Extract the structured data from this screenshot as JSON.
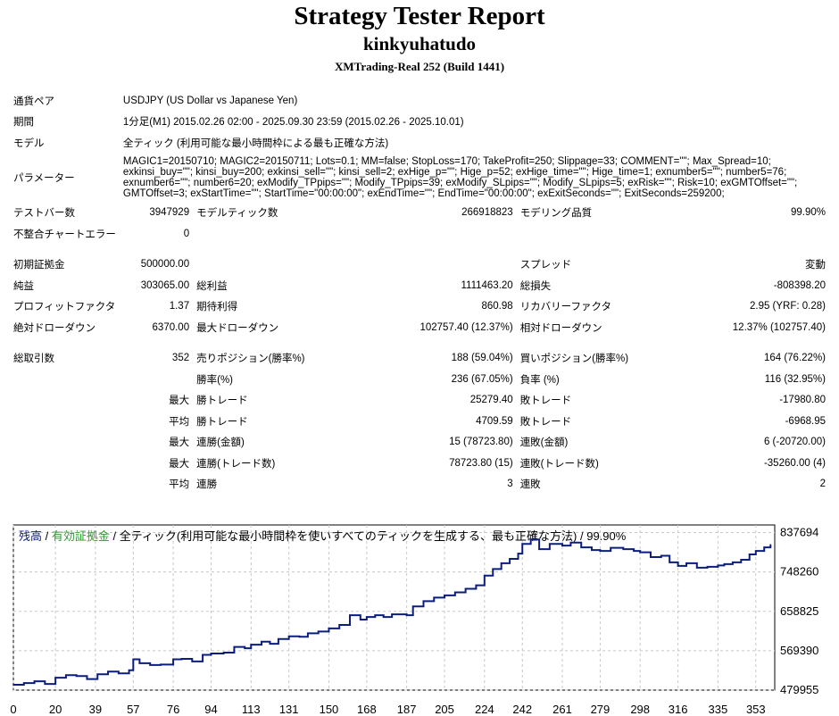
{
  "header": {
    "title": "Strategy Tester Report",
    "subtitle": "kinkyuhatudo",
    "server": "XMTrading-Real 252 (Build 1441)"
  },
  "info": {
    "pair_label": "通貨ペア",
    "pair_value": "USDJPY (US Dollar vs Japanese Yen)",
    "period_label": "期間",
    "period_value": "1分足(M1) 2015.02.26 02:00 - 2025.09.30 23:59 (2015.02.26 - 2025.10.01)",
    "model_label": "モデル",
    "model_value": "全ティック (利用可能な最小時間枠による最も正確な方法)",
    "params_label": "パラメーター",
    "params_value": "MAGIC1=20150710; MAGIC2=20150711; Lots=0.1; MM=false; StopLoss=170; TakeProfit=250; Slippage=33; COMMENT=\"\"; Max_Spread=10; exkinsi_buy=\"\"; kinsi_buy=200; exkinsi_sell=\"\"; kinsi_sell=2; exHige_p=\"\"; Hige_p=52; exHige_time=\"\"; Hige_time=1; exnumber5=\"\"; number5=76; exnumber6=\"\"; number6=20; exModify_TPpips=\"\"; Modify_TPpips=39; exModify_SLpips=\"\"; Modify_SLpips=5; exRisk=\"\"; Risk=10; exGMTOffset=\"\"; GMTOffset=3; exStartTime=\"\"; StartTime=\"00:00:00\"; exEndTime=\"\"; EndTime=\"00:00:00\"; exExitSeconds=\"\"; ExitSeconds=259200;"
  },
  "stats": {
    "bars_label": "テストバー数",
    "bars_value": "3947929",
    "ticks_label": "モデルティック数",
    "ticks_value": "266918823",
    "quality_label": "モデリング品質",
    "quality_value": "99.90%",
    "mismatch_label": "不整合チャートエラー",
    "mismatch_value": "0",
    "deposit_label": "初期証拠金",
    "deposit_value": "500000.00",
    "spread_label": "スプレッド",
    "spread_value": "変動",
    "net_label": "純益",
    "net_value": "303065.00",
    "gross_profit_label": "総利益",
    "gross_profit_value": "1111463.20",
    "gross_loss_label": "総損失",
    "gross_loss_value": "-808398.20",
    "pf_label": "プロフィットファクタ",
    "pf_value": "1.37",
    "expected_label": "期待利得",
    "expected_value": "860.98",
    "recovery_label": "リカバリーファクタ",
    "recovery_value": "2.95 (YRF: 0.28)",
    "abs_dd_label": "絶対ドローダウン",
    "abs_dd_value": "6370.00",
    "max_dd_label": "最大ドローダウン",
    "max_dd_value": "102757.40 (12.37%)",
    "rel_dd_label": "相対ドローダウン",
    "rel_dd_value": "12.37% (102757.40)",
    "trades_label": "総取引数",
    "trades_value": "352",
    "short_label": "売りポジション(勝率%)",
    "short_value": "188 (59.04%)",
    "long_label": "買いポジション(勝率%)",
    "long_value": "164 (76.22%)",
    "winrate_label": "勝率(%)",
    "winrate_value": "236 (67.05%)",
    "lossrate_label": "負率 (%)",
    "lossrate_value": "116 (32.95%)",
    "max_label": "最大",
    "avg_label": "平均",
    "max_win_label": "勝トレード",
    "max_win_value": "25279.40",
    "max_loss_label": "敗トレード",
    "max_loss_value": "-17980.80",
    "avg_win_label": "勝トレード",
    "avg_win_value": "4709.59",
    "avg_loss_label": "敗トレード",
    "avg_loss_value": "-6968.95",
    "cw_money_label": "連勝(金額)",
    "cw_money_value": "15 (78723.80)",
    "cl_money_label": "連敗(金額)",
    "cl_money_value": "6 (-20720.00)",
    "cw_count_label": "連勝(トレード数)",
    "cw_count_value": "78723.80 (15)",
    "cl_count_label": "連敗(トレード数)",
    "cl_count_value": "-35260.00 (4)",
    "avg_cw_label": "連勝",
    "avg_cw_value": "3",
    "avg_cl_label": "連敗",
    "avg_cl_value": "2"
  },
  "chart_data": {
    "type": "line",
    "legend": {
      "balance": "残高",
      "sep1": " / ",
      "equity": "有効証拠金",
      "sep2": " / 全ティック(利用可能な最小時間枠を使いすべてのティックを生成する、最も正確な方法) / 99.90%"
    },
    "colors": {
      "balance": "#0b1e7e",
      "equity": "#2e9a2e",
      "legend_balance": "#0b1e7e",
      "legend_equity": "#2e9a2e"
    },
    "ylim": [
      479955,
      855000
    ],
    "xlim": [
      0,
      362
    ],
    "y_ticks": [
      "837694",
      "748260",
      "658825",
      "569390",
      "479955"
    ],
    "x_ticks": [
      "0",
      "20",
      "39",
      "57",
      "76",
      "94",
      "113",
      "131",
      "150",
      "168",
      "187",
      "205",
      "224",
      "242",
      "261",
      "279",
      "298",
      "316",
      "335",
      "353"
    ],
    "grid": true,
    "series": [
      {
        "x": [
          0,
          5,
          10,
          15,
          20,
          25,
          30,
          35,
          40,
          45,
          50,
          55,
          57,
          60,
          65,
          70,
          76,
          80,
          85,
          90,
          94,
          100,
          105,
          110,
          113,
          118,
          122,
          126,
          131,
          136,
          140,
          145,
          150,
          155,
          160,
          165,
          168,
          172,
          176,
          180,
          187,
          190,
          195,
          200,
          205,
          210,
          215,
          220,
          224,
          228,
          232,
          236,
          240,
          242,
          246,
          250,
          255,
          261,
          265,
          270,
          275,
          279,
          284,
          290,
          295,
          298,
          303,
          308,
          312,
          316,
          320,
          325,
          330,
          335,
          338,
          342,
          346,
          350,
          353,
          357,
          360
        ],
        "values": [
          492000,
          496000,
          500000,
          494000,
          508000,
          514000,
          512000,
          505000,
          516000,
          522000,
          518000,
          525000,
          550000,
          541000,
          537000,
          538000,
          550000,
          551000,
          545000,
          560000,
          563000,
          565000,
          578000,
          575000,
          583000,
          590000,
          585000,
          596000,
          602000,
          601000,
          609000,
          613000,
          620000,
          628000,
          650000,
          640000,
          646000,
          650000,
          646000,
          652000,
          650000,
          670000,
          682000,
          690000,
          695000,
          702000,
          710000,
          718000,
          740000,
          755000,
          768000,
          778000,
          790000,
          812000,
          822000,
          800000,
          812000,
          808000,
          815000,
          804000,
          798000,
          796000,
          803000,
          800000,
          796000,
          793000,
          782000,
          785000,
          770000,
          762000,
          768000,
          758000,
          760000,
          763000,
          766000,
          770000,
          776000,
          788000,
          796000,
          804000,
          810000
        ]
      }
    ]
  }
}
